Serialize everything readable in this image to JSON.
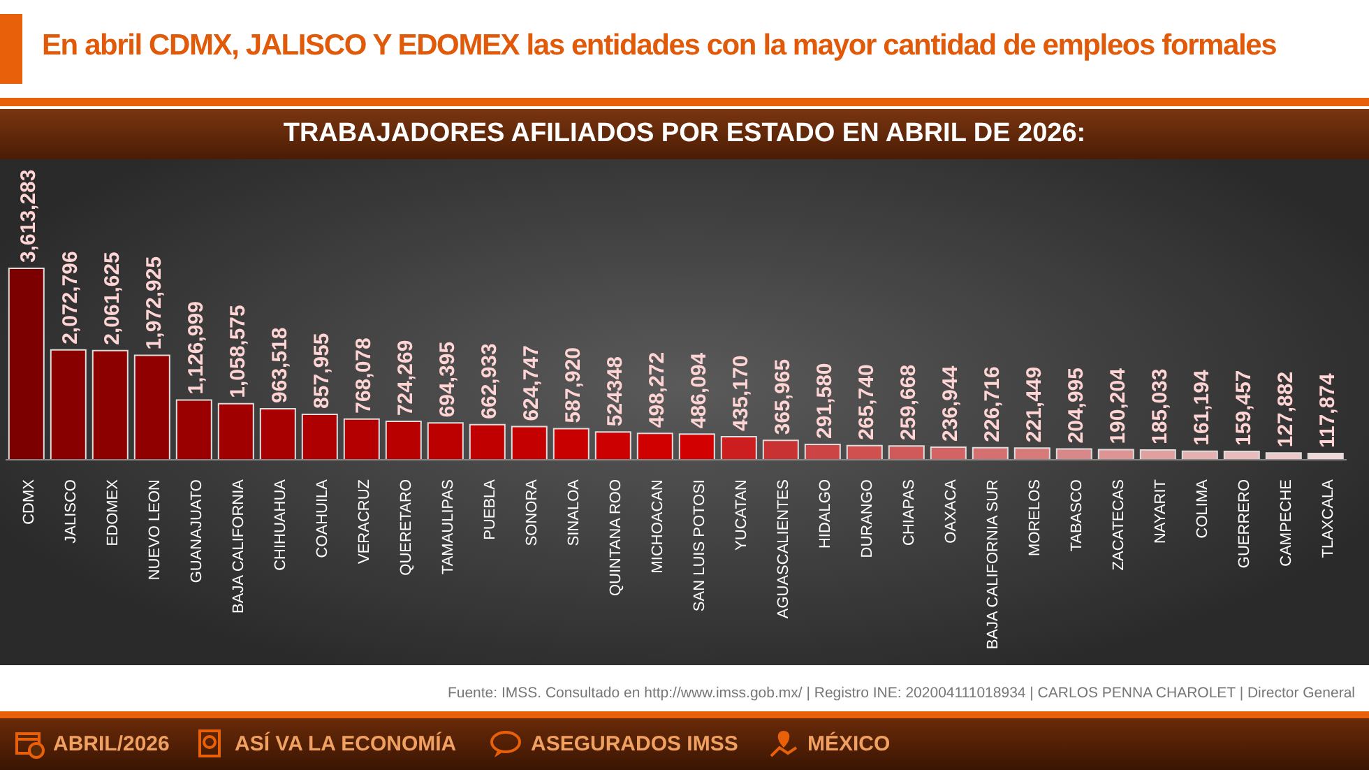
{
  "chart_data": {
    "type": "bar",
    "title": "En abril CDMX, JALISCO Y EDOMEX las entidades con la mayor cantidad de empleos formales",
    "subtitle": "TRABAJADORES AFILIADOS POR ESTADO EN ABRIL DE 2026:",
    "categories": [
      "CDMX",
      "JALISCO",
      "EDOMEX",
      "NUEVO LEON",
      "GUANAJUATO",
      "BAJA CALIFORNIA",
      "CHIHUAHUA",
      "COAHUILA",
      "VERACRUZ",
      "QUERETARO",
      "TAMAULIPAS",
      "PUEBLA",
      "SONORA",
      "SINALOA",
      "QUINTANA ROO",
      "MICHOACAN",
      "SAN LUIS POTOSI",
      "YUCATAN",
      "AGUASCALIENTES",
      "HIDALGO",
      "DURANGO",
      "CHIAPAS",
      "OAXACA",
      "BAJA CALIFORNIA SUR",
      "MORELOS",
      "TABASCO",
      "ZACATECAS",
      "NAYARIT",
      "COLIMA",
      "GUERRERO",
      "CAMPECHE",
      "TLAXCALA"
    ],
    "values": [
      3613283,
      2072796,
      2061625,
      1972925,
      1126999,
      1058575,
      963518,
      857955,
      768078,
      724269,
      694395,
      662933,
      624747,
      587920,
      524348,
      498272,
      486094,
      435170,
      365965,
      291580,
      265740,
      259668,
      236944,
      226716,
      221449,
      204995,
      190204,
      185033,
      161194,
      159457,
      127882,
      117874
    ],
    "value_labels": [
      "3,613,283",
      "2,072,796",
      "2,061,625",
      "1,972,925",
      "1,126,999",
      "1,058,575",
      "963,518",
      "857,955",
      "768,078",
      "724,269",
      "694,395",
      "662,933",
      "624,747",
      "587,920",
      "524348",
      "498,272",
      "486,094",
      "435,170",
      "365,965",
      "291,580",
      "265,740",
      "259,668",
      "236,944",
      "226,716",
      "221,449",
      "204,995",
      "190,204",
      "185,033",
      "161,194",
      "159,457",
      "127,882",
      "117,874"
    ],
    "colors": [
      "#7d0000",
      "#880000",
      "#8c0000",
      "#900000",
      "#9a0000",
      "#a00000",
      "#a80000",
      "#ae0000",
      "#b40000",
      "#b80000",
      "#bc0000",
      "#c00000",
      "#c40000",
      "#c80000",
      "#cc0000",
      "#d00000",
      "#d20000",
      "#cc1e1e",
      "#c83232",
      "#cc4444",
      "#d05050",
      "#d05a5a",
      "#d46464",
      "#d47070",
      "#d67a7a",
      "#d88888",
      "#dc9494",
      "#e0a0a0",
      "#e4b0b0",
      "#e8bcbc",
      "#ecc8c8",
      "#f0d8d8"
    ],
    "annotations": [
      "Fuente: IMSS. Consultado en http://www.imss.gob.mx/ | Registro INE: 202004111018934 | CARLOS PENNA CHAROLET | Director General",
      "ABRIL/2026",
      "ASÍ VA LA ECONOMÍA",
      "ASEGURADOS IMSS",
      "MÉXICO"
    ],
    "grid": false,
    "legend": false
  }
}
